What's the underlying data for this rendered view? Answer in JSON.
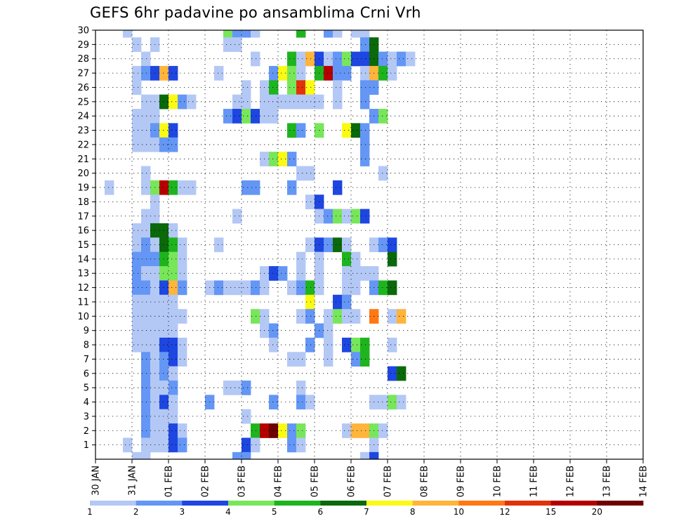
{
  "chart_data": {
    "type": "heatmap",
    "title": "GEFS 6hr padavine po ansamblima Crni Vrh",
    "xlabel": "",
    "ylabel": "",
    "x_tick_labels": [
      "30 JAN",
      "31 JAN",
      "01 FEB",
      "02 FEB",
      "03 FEB",
      "04 FEB",
      "05 FEB",
      "06 FEB",
      "07 FEB",
      "08 FEB",
      "09 FEB",
      "10 FEB",
      "11 FEB",
      "12 FEB",
      "13 FEB",
      "14 FEB"
    ],
    "x_range_days": [
      0,
      15
    ],
    "y_tick_labels": [
      1,
      2,
      3,
      4,
      5,
      6,
      7,
      8,
      9,
      10,
      11,
      12,
      13,
      14,
      15,
      16,
      17,
      18,
      19,
      20,
      21,
      22,
      23,
      24,
      25,
      26,
      27,
      28,
      29,
      30
    ],
    "y_range_members": [
      0,
      30
    ],
    "time_step_hours": 6,
    "legend": {
      "placement": "bottom",
      "bins": [
        {
          "level": 1,
          "label": "1",
          "color": "#b4c8f5"
        },
        {
          "level": 2,
          "label": "2",
          "color": "#6496f5"
        },
        {
          "level": 3,
          "label": "3",
          "color": "#1e46e1"
        },
        {
          "level": 4,
          "label": "4",
          "color": "#78e65a"
        },
        {
          "level": 5,
          "label": "5",
          "color": "#1eb41e"
        },
        {
          "level": 6,
          "label": "6",
          "color": "#0a690a"
        },
        {
          "level": 7,
          "label": "7",
          "color": "#fafa14"
        },
        {
          "level": 8,
          "label": "8",
          "color": "#ffb43c"
        },
        {
          "level": 9,
          "label": "10",
          "color": "#ff7814"
        },
        {
          "level": 10,
          "label": "12",
          "color": "#e1320a"
        },
        {
          "level": 11,
          "label": "15",
          "color": "#b40000"
        },
        {
          "level": 12,
          "label": "20",
          "color": "#6e0000"
        }
      ]
    },
    "note": "cells = [member, step index (6h steps from 30 JAN 00Z), color level]",
    "cells": [
      [
        30,
        3,
        1
      ],
      [
        30,
        14,
        4
      ],
      [
        30,
        15,
        2
      ],
      [
        30,
        16,
        2
      ],
      [
        30,
        17,
        1
      ],
      [
        30,
        22,
        5
      ],
      [
        30,
        25,
        2
      ],
      [
        30,
        26,
        1
      ],
      [
        30,
        28,
        1
      ],
      [
        30,
        29,
        1
      ],
      [
        29,
        4,
        1
      ],
      [
        29,
        6,
        1
      ],
      [
        29,
        14,
        1
      ],
      [
        29,
        15,
        1
      ],
      [
        29,
        29,
        2
      ],
      [
        29,
        30,
        6
      ],
      [
        28,
        5,
        1
      ],
      [
        28,
        17,
        1
      ],
      [
        28,
        21,
        5
      ],
      [
        28,
        22,
        1
      ],
      [
        28,
        23,
        8
      ],
      [
        28,
        24,
        3
      ],
      [
        28,
        25,
        1
      ],
      [
        28,
        26,
        2
      ],
      [
        28,
        27,
        4
      ],
      [
        28,
        28,
        3
      ],
      [
        28,
        29,
        3
      ],
      [
        28,
        30,
        6
      ],
      [
        28,
        31,
        2
      ],
      [
        28,
        32,
        1
      ],
      [
        28,
        33,
        2
      ],
      [
        28,
        34,
        1
      ],
      [
        27,
        4,
        1
      ],
      [
        27,
        5,
        2
      ],
      [
        27,
        6,
        3
      ],
      [
        27,
        7,
        8
      ],
      [
        27,
        8,
        3
      ],
      [
        27,
        13,
        1
      ],
      [
        27,
        19,
        2
      ],
      [
        27,
        20,
        7
      ],
      [
        27,
        21,
        4
      ],
      [
        27,
        22,
        1
      ],
      [
        27,
        24,
        5
      ],
      [
        27,
        25,
        11
      ],
      [
        27,
        26,
        2
      ],
      [
        27,
        27,
        2
      ],
      [
        27,
        29,
        1
      ],
      [
        27,
        30,
        8
      ],
      [
        27,
        31,
        5
      ],
      [
        27,
        32,
        1
      ],
      [
        26,
        4,
        1
      ],
      [
        26,
        16,
        1
      ],
      [
        26,
        18,
        1
      ],
      [
        26,
        19,
        5
      ],
      [
        26,
        21,
        4
      ],
      [
        26,
        22,
        10
      ],
      [
        26,
        23,
        7
      ],
      [
        26,
        26,
        1
      ],
      [
        26,
        29,
        2
      ],
      [
        26,
        30,
        2
      ],
      [
        25,
        5,
        1
      ],
      [
        25,
        6,
        1
      ],
      [
        25,
        7,
        6
      ],
      [
        25,
        8,
        7
      ],
      [
        25,
        9,
        2
      ],
      [
        25,
        10,
        1
      ],
      [
        25,
        15,
        1
      ],
      [
        25,
        16,
        1
      ],
      [
        25,
        18,
        1
      ],
      [
        25,
        19,
        1
      ],
      [
        25,
        20,
        1
      ],
      [
        25,
        21,
        1
      ],
      [
        25,
        22,
        1
      ],
      [
        25,
        23,
        1
      ],
      [
        25,
        24,
        1
      ],
      [
        25,
        26,
        1
      ],
      [
        25,
        29,
        2
      ],
      [
        24,
        4,
        1
      ],
      [
        24,
        5,
        1
      ],
      [
        24,
        6,
        1
      ],
      [
        24,
        14,
        2
      ],
      [
        24,
        15,
        3
      ],
      [
        24,
        16,
        4
      ],
      [
        24,
        17,
        3
      ],
      [
        24,
        18,
        1
      ],
      [
        24,
        19,
        1
      ],
      [
        24,
        30,
        2
      ],
      [
        24,
        31,
        4
      ],
      [
        23,
        4,
        1
      ],
      [
        23,
        5,
        1
      ],
      [
        23,
        6,
        2
      ],
      [
        23,
        7,
        7
      ],
      [
        23,
        8,
        3
      ],
      [
        23,
        21,
        5
      ],
      [
        23,
        22,
        2
      ],
      [
        23,
        24,
        4
      ],
      [
        23,
        27,
        7
      ],
      [
        23,
        28,
        6
      ],
      [
        23,
        29,
        2
      ],
      [
        22,
        4,
        1
      ],
      [
        22,
        5,
        1
      ],
      [
        22,
        6,
        1
      ],
      [
        22,
        7,
        2
      ],
      [
        22,
        8,
        2
      ],
      [
        22,
        29,
        2
      ],
      [
        21,
        18,
        1
      ],
      [
        21,
        19,
        4
      ],
      [
        21,
        20,
        7
      ],
      [
        21,
        21,
        2
      ],
      [
        21,
        29,
        2
      ],
      [
        20,
        5,
        1
      ],
      [
        20,
        22,
        1
      ],
      [
        20,
        23,
        1
      ],
      [
        20,
        31,
        1
      ],
      [
        19,
        1,
        1
      ],
      [
        19,
        5,
        1
      ],
      [
        19,
        6,
        4
      ],
      [
        19,
        7,
        11
      ],
      [
        19,
        8,
        5
      ],
      [
        19,
        9,
        1
      ],
      [
        19,
        10,
        1
      ],
      [
        19,
        16,
        2
      ],
      [
        19,
        17,
        2
      ],
      [
        19,
        21,
        2
      ],
      [
        19,
        26,
        3
      ],
      [
        18,
        6,
        1
      ],
      [
        18,
        23,
        1
      ],
      [
        18,
        24,
        3
      ],
      [
        17,
        5,
        1
      ],
      [
        17,
        6,
        1
      ],
      [
        17,
        15,
        1
      ],
      [
        17,
        24,
        1
      ],
      [
        17,
        25,
        2
      ],
      [
        17,
        26,
        4
      ],
      [
        17,
        27,
        1
      ],
      [
        17,
        28,
        4
      ],
      [
        17,
        29,
        3
      ],
      [
        16,
        4,
        1
      ],
      [
        16,
        5,
        1
      ],
      [
        16,
        6,
        6
      ],
      [
        16,
        7,
        6
      ],
      [
        16,
        8,
        1
      ],
      [
        15,
        4,
        1
      ],
      [
        15,
        5,
        2
      ],
      [
        15,
        6,
        1
      ],
      [
        15,
        7,
        6
      ],
      [
        15,
        8,
        5
      ],
      [
        15,
        9,
        1
      ],
      [
        15,
        13,
        1
      ],
      [
        15,
        23,
        1
      ],
      [
        15,
        24,
        3
      ],
      [
        15,
        25,
        2
      ],
      [
        15,
        26,
        6
      ],
      [
        15,
        27,
        1
      ],
      [
        15,
        30,
        1
      ],
      [
        15,
        31,
        2
      ],
      [
        15,
        32,
        3
      ],
      [
        14,
        4,
        2
      ],
      [
        14,
        5,
        2
      ],
      [
        14,
        6,
        2
      ],
      [
        14,
        7,
        5
      ],
      [
        14,
        8,
        4
      ],
      [
        14,
        9,
        1
      ],
      [
        14,
        22,
        1
      ],
      [
        14,
        24,
        1
      ],
      [
        14,
        27,
        5
      ],
      [
        14,
        28,
        1
      ],
      [
        14,
        32,
        6
      ],
      [
        13,
        4,
        2
      ],
      [
        13,
        5,
        1
      ],
      [
        13,
        6,
        1
      ],
      [
        13,
        7,
        4
      ],
      [
        13,
        8,
        4
      ],
      [
        13,
        9,
        1
      ],
      [
        13,
        18,
        1
      ],
      [
        13,
        19,
        3
      ],
      [
        13,
        20,
        2
      ],
      [
        13,
        22,
        1
      ],
      [
        13,
        24,
        1
      ],
      [
        13,
        27,
        1
      ],
      [
        13,
        28,
        1
      ],
      [
        13,
        29,
        1
      ],
      [
        13,
        30,
        1
      ],
      [
        12,
        4,
        2
      ],
      [
        12,
        5,
        2
      ],
      [
        12,
        6,
        1
      ],
      [
        12,
        7,
        3
      ],
      [
        12,
        8,
        8
      ],
      [
        12,
        9,
        2
      ],
      [
        12,
        12,
        1
      ],
      [
        12,
        13,
        2
      ],
      [
        12,
        14,
        1
      ],
      [
        12,
        15,
        1
      ],
      [
        12,
        16,
        1
      ],
      [
        12,
        17,
        2
      ],
      [
        12,
        18,
        1
      ],
      [
        12,
        21,
        1
      ],
      [
        12,
        22,
        2
      ],
      [
        12,
        23,
        5
      ],
      [
        12,
        24,
        1
      ],
      [
        12,
        27,
        1
      ],
      [
        12,
        28,
        1
      ],
      [
        12,
        30,
        2
      ],
      [
        12,
        31,
        5
      ],
      [
        12,
        32,
        6
      ],
      [
        11,
        4,
        1
      ],
      [
        11,
        5,
        1
      ],
      [
        11,
        6,
        1
      ],
      [
        11,
        7,
        1
      ],
      [
        11,
        8,
        1
      ],
      [
        11,
        23,
        7
      ],
      [
        11,
        26,
        3
      ],
      [
        11,
        27,
        2
      ],
      [
        10,
        4,
        1
      ],
      [
        10,
        5,
        1
      ],
      [
        10,
        6,
        1
      ],
      [
        10,
        7,
        1
      ],
      [
        10,
        8,
        1
      ],
      [
        10,
        9,
        1
      ],
      [
        10,
        17,
        4
      ],
      [
        10,
        18,
        1
      ],
      [
        10,
        22,
        1
      ],
      [
        10,
        23,
        2
      ],
      [
        10,
        25,
        1
      ],
      [
        10,
        26,
        4
      ],
      [
        10,
        27,
        1
      ],
      [
        10,
        28,
        1
      ],
      [
        10,
        30,
        9
      ],
      [
        10,
        32,
        1
      ],
      [
        10,
        33,
        8
      ],
      [
        9,
        4,
        1
      ],
      [
        9,
        5,
        1
      ],
      [
        9,
        6,
        1
      ],
      [
        9,
        7,
        1
      ],
      [
        9,
        8,
        1
      ],
      [
        9,
        18,
        1
      ],
      [
        9,
        19,
        2
      ],
      [
        9,
        24,
        2
      ],
      [
        9,
        25,
        1
      ],
      [
        8,
        4,
        1
      ],
      [
        8,
        5,
        1
      ],
      [
        8,
        6,
        1
      ],
      [
        8,
        7,
        3
      ],
      [
        8,
        8,
        3
      ],
      [
        8,
        9,
        1
      ],
      [
        8,
        19,
        1
      ],
      [
        8,
        23,
        2
      ],
      [
        8,
        25,
        1
      ],
      [
        8,
        27,
        3
      ],
      [
        8,
        28,
        4
      ],
      [
        8,
        29,
        5
      ],
      [
        8,
        32,
        1
      ],
      [
        7,
        5,
        2
      ],
      [
        7,
        6,
        1
      ],
      [
        7,
        7,
        2
      ],
      [
        7,
        8,
        3
      ],
      [
        7,
        9,
        1
      ],
      [
        7,
        21,
        1
      ],
      [
        7,
        22,
        1
      ],
      [
        7,
        25,
        1
      ],
      [
        7,
        28,
        2
      ],
      [
        7,
        29,
        5
      ],
      [
        6,
        5,
        2
      ],
      [
        6,
        6,
        1
      ],
      [
        6,
        7,
        2
      ],
      [
        6,
        8,
        1
      ],
      [
        6,
        32,
        3
      ],
      [
        6,
        33,
        6
      ],
      [
        5,
        5,
        2
      ],
      [
        5,
        6,
        1
      ],
      [
        5,
        7,
        1
      ],
      [
        5,
        8,
        2
      ],
      [
        5,
        14,
        1
      ],
      [
        5,
        15,
        1
      ],
      [
        5,
        16,
        2
      ],
      [
        5,
        22,
        1
      ],
      [
        4,
        5,
        2
      ],
      [
        4,
        6,
        1
      ],
      [
        4,
        7,
        3
      ],
      [
        4,
        8,
        1
      ],
      [
        4,
        12,
        2
      ],
      [
        4,
        19,
        2
      ],
      [
        4,
        22,
        2
      ],
      [
        4,
        23,
        1
      ],
      [
        4,
        30,
        1
      ],
      [
        4,
        31,
        1
      ],
      [
        4,
        32,
        4
      ],
      [
        4,
        33,
        1
      ],
      [
        3,
        5,
        2
      ],
      [
        3,
        6,
        1
      ],
      [
        3,
        7,
        1
      ],
      [
        3,
        8,
        1
      ],
      [
        3,
        16,
        1
      ],
      [
        2,
        5,
        2
      ],
      [
        2,
        6,
        1
      ],
      [
        2,
        7,
        1
      ],
      [
        2,
        8,
        3
      ],
      [
        2,
        9,
        1
      ],
      [
        2,
        17,
        5
      ],
      [
        2,
        18,
        11
      ],
      [
        2,
        19,
        12
      ],
      [
        2,
        20,
        7
      ],
      [
        2,
        21,
        2
      ],
      [
        2,
        22,
        4
      ],
      [
        2,
        27,
        1
      ],
      [
        2,
        28,
        8
      ],
      [
        2,
        29,
        8
      ],
      [
        2,
        30,
        4
      ],
      [
        2,
        31,
        1
      ],
      [
        1,
        3,
        1
      ],
      [
        1,
        5,
        1
      ],
      [
        1,
        6,
        1
      ],
      [
        1,
        7,
        1
      ],
      [
        1,
        8,
        3
      ],
      [
        1,
        9,
        2
      ],
      [
        1,
        16,
        3
      ],
      [
        1,
        17,
        1
      ],
      [
        1,
        21,
        2
      ],
      [
        1,
        22,
        1
      ],
      [
        1,
        30,
        1
      ],
      [
        0,
        4,
        1
      ],
      [
        0,
        5,
        1
      ],
      [
        0,
        15,
        2
      ],
      [
        0,
        16,
        2
      ],
      [
        0,
        29,
        1
      ],
      [
        0,
        30,
        3
      ]
    ]
  }
}
